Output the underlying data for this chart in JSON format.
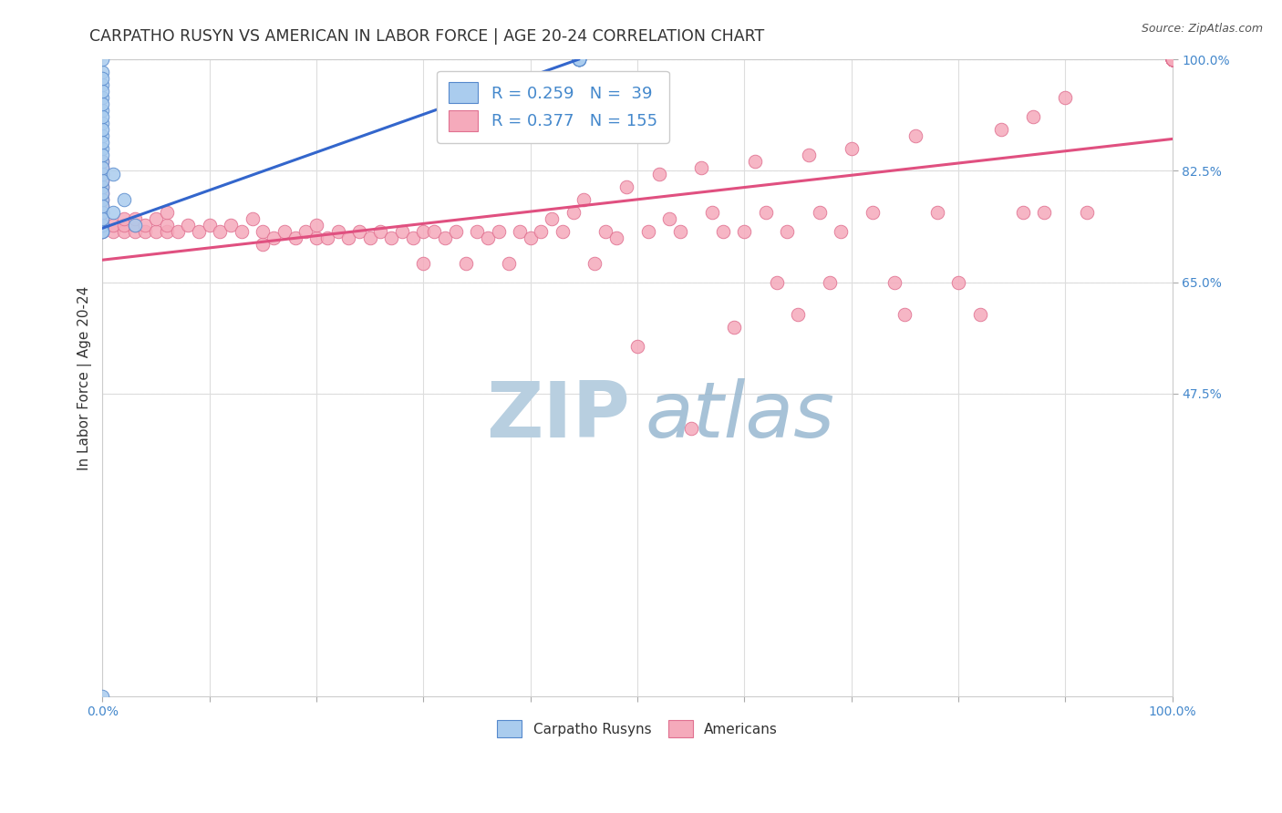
{
  "title": "CARPATHO RUSYN VS AMERICAN IN LABOR FORCE | AGE 20-24 CORRELATION CHART",
  "source_text": "Source: ZipAtlas.com",
  "ylabel": "In Labor Force | Age 20-24",
  "xlim": [
    0.0,
    1.0
  ],
  "ylim": [
    0.0,
    1.0
  ],
  "ytick_values": [
    0.475,
    0.65,
    0.825,
    1.0
  ],
  "ytick_labels": [
    "47.5%",
    "65.0%",
    "82.5%",
    "100.0%"
  ],
  "xtick_values": [
    0.0,
    1.0
  ],
  "xtick_labels": [
    "0.0%",
    "100.0%"
  ],
  "background_color": "#ffffff",
  "grid_color": "#dddddd",
  "blue_line_x": [
    0.0,
    0.445
  ],
  "blue_line_y": [
    0.735,
    1.0
  ],
  "pink_line_x": [
    0.0,
    1.0
  ],
  "pink_line_y": [
    0.685,
    0.875
  ],
  "blue_scatter_color": "#aaccee",
  "blue_scatter_edge": "#5588cc",
  "pink_scatter_color": "#f5aabb",
  "pink_scatter_edge": "#e07090",
  "blue_line_color": "#3366cc",
  "pink_line_color": "#e05080",
  "tick_color": "#4488cc",
  "title_color": "#333333",
  "legend1_labels": [
    "R = 0.259   N =  39",
    "R = 0.377   N = 155"
  ],
  "legend2_labels": [
    "Carpatho Rusyns",
    "Americans"
  ],
  "watermark_zip_color": "#b8cfe0",
  "watermark_atlas_color": "#98b8d0",
  "blue_x": [
    0.0,
    0.0,
    0.0,
    0.0,
    0.0,
    0.0,
    0.0,
    0.0,
    0.0,
    0.0,
    0.0,
    0.0,
    0.0,
    0.0,
    0.0,
    0.0,
    0.0,
    0.0,
    0.0,
    0.0,
    0.0,
    0.0,
    0.0,
    0.0,
    0.0,
    0.0,
    0.0,
    0.0,
    0.0,
    0.01,
    0.01,
    0.02,
    0.03,
    0.445,
    0.445,
    0.445,
    0.445,
    0.445,
    0.445
  ],
  "blue_y": [
    0.0,
    0.73,
    0.74,
    0.76,
    0.78,
    0.8,
    0.82,
    0.84,
    0.86,
    0.88,
    0.9,
    0.92,
    0.94,
    0.96,
    0.98,
    1.0,
    0.73,
    0.75,
    0.77,
    0.79,
    0.81,
    0.83,
    0.85,
    0.87,
    0.89,
    0.91,
    0.93,
    0.95,
    0.97,
    0.76,
    0.82,
    0.78,
    0.74,
    1.0,
    1.0,
    1.0,
    1.0,
    1.0,
    1.0
  ],
  "pink_x": [
    0.0,
    0.0,
    0.0,
    0.0,
    0.0,
    0.0,
    0.0,
    0.0,
    0.0,
    0.0,
    0.0,
    0.0,
    0.01,
    0.01,
    0.02,
    0.02,
    0.02,
    0.03,
    0.03,
    0.03,
    0.04,
    0.04,
    0.05,
    0.05,
    0.06,
    0.06,
    0.06,
    0.07,
    0.08,
    0.09,
    0.1,
    0.11,
    0.12,
    0.13,
    0.14,
    0.15,
    0.15,
    0.16,
    0.17,
    0.18,
    0.19,
    0.2,
    0.2,
    0.21,
    0.22,
    0.23,
    0.24,
    0.25,
    0.26,
    0.27,
    0.28,
    0.29,
    0.3,
    0.3,
    0.31,
    0.32,
    0.33,
    0.34,
    0.35,
    0.36,
    0.37,
    0.38,
    0.39,
    0.4,
    0.41,
    0.42,
    0.43,
    0.44,
    0.45,
    0.46,
    0.47,
    0.48,
    0.49,
    0.5,
    0.51,
    0.52,
    0.53,
    0.54,
    0.55,
    0.56,
    0.57,
    0.58,
    0.59,
    0.6,
    0.61,
    0.62,
    0.63,
    0.64,
    0.65,
    0.66,
    0.67,
    0.68,
    0.69,
    0.7,
    0.72,
    0.74,
    0.75,
    0.76,
    0.78,
    0.8,
    0.82,
    0.84,
    0.86,
    0.87,
    0.88,
    0.9,
    0.92,
    1.0,
    1.0,
    1.0,
    1.0,
    1.0,
    1.0,
    1.0,
    1.0,
    1.0,
    1.0,
    1.0,
    1.0,
    1.0,
    1.0,
    1.0,
    1.0,
    1.0,
    1.0,
    1.0,
    1.0,
    1.0,
    1.0,
    1.0,
    1.0,
    1.0,
    1.0,
    1.0,
    1.0,
    1.0,
    1.0,
    1.0,
    1.0,
    1.0
  ],
  "pink_y": [
    0.73,
    0.74,
    0.75,
    0.76,
    0.77,
    0.78,
    0.79,
    0.8,
    0.81,
    0.82,
    0.83,
    0.84,
    0.73,
    0.74,
    0.73,
    0.74,
    0.75,
    0.73,
    0.74,
    0.75,
    0.73,
    0.74,
    0.73,
    0.75,
    0.73,
    0.74,
    0.76,
    0.73,
    0.74,
    0.73,
    0.74,
    0.73,
    0.74,
    0.73,
    0.75,
    0.71,
    0.73,
    0.72,
    0.73,
    0.72,
    0.73,
    0.72,
    0.74,
    0.72,
    0.73,
    0.72,
    0.73,
    0.72,
    0.73,
    0.72,
    0.73,
    0.72,
    0.73,
    0.68,
    0.73,
    0.72,
    0.73,
    0.68,
    0.73,
    0.72,
    0.73,
    0.68,
    0.73,
    0.72,
    0.73,
    0.75,
    0.73,
    0.76,
    0.78,
    0.68,
    0.73,
    0.72,
    0.8,
    0.55,
    0.73,
    0.82,
    0.75,
    0.73,
    0.42,
    0.83,
    0.76,
    0.73,
    0.58,
    0.73,
    0.84,
    0.76,
    0.65,
    0.73,
    0.6,
    0.85,
    0.76,
    0.65,
    0.73,
    0.86,
    0.76,
    0.65,
    0.6,
    0.88,
    0.76,
    0.65,
    0.6,
    0.89,
    0.76,
    0.91,
    0.76,
    0.94,
    0.76,
    1.0,
    1.0,
    1.0,
    1.0,
    1.0,
    1.0,
    1.0,
    1.0,
    1.0,
    1.0,
    1.0,
    1.0,
    1.0,
    1.0,
    1.0,
    1.0,
    1.0,
    1.0,
    1.0,
    1.0,
    1.0,
    1.0,
    1.0,
    1.0,
    1.0,
    1.0,
    1.0,
    1.0,
    1.0,
    1.0,
    1.0,
    1.0,
    1.0
  ]
}
